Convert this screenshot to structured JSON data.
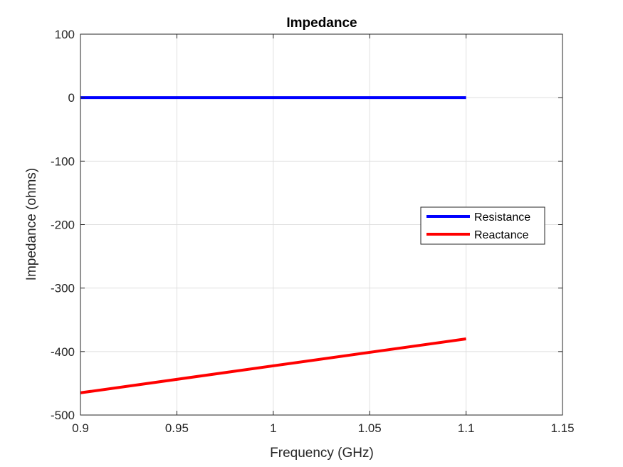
{
  "chart_data": {
    "type": "line",
    "title": "Impedance",
    "xlabel": "Frequency (GHz)",
    "ylabel": "Impedance (ohms)",
    "xlim": [
      0.9,
      1.15
    ],
    "ylim": [
      -500,
      100
    ],
    "xticks": [
      0.9,
      0.95,
      1,
      1.05,
      1.1,
      1.15
    ],
    "xtick_labels": [
      "0.9",
      "0.95",
      "1",
      "1.05",
      "1.1",
      "1.15"
    ],
    "yticks": [
      -500,
      -400,
      -300,
      -200,
      -100,
      0,
      100
    ],
    "ytick_labels": [
      "-500",
      "-400",
      "-300",
      "-200",
      "-100",
      "0",
      "100"
    ],
    "grid": true,
    "legend_position": "right",
    "series": [
      {
        "name": "Resistance",
        "color": "#0000ff",
        "x": [
          0.9,
          1.1
        ],
        "y": [
          0,
          0
        ]
      },
      {
        "name": "Reactance",
        "color": "#ff0000",
        "x": [
          0.9,
          1.1
        ],
        "y": [
          -465,
          -380
        ]
      }
    ]
  }
}
